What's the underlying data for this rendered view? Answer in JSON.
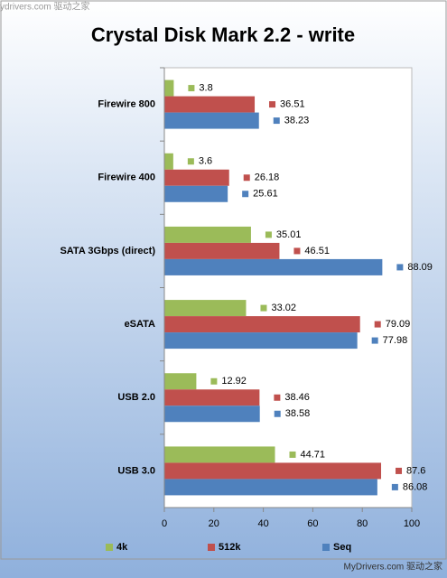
{
  "watermarks": {
    "top": "ydrivers.com 驱动之家",
    "bottom": "MyDrivers.com 驱动之家"
  },
  "chart_data": {
    "type": "bar",
    "orientation": "horizontal",
    "title": "Crystal Disk Mark 2.2 - write",
    "categories": [
      "Firewire 800",
      "Firewire 400",
      "SATA 3Gbps (direct)",
      "eSATA",
      "USB 2.0",
      "USB 3.0"
    ],
    "series": [
      {
        "name": "4k",
        "color": "#9bbb59",
        "values": [
          3.8,
          3.6,
          35.01,
          33.02,
          12.92,
          44.71
        ]
      },
      {
        "name": "512k",
        "color": "#c0504d",
        "values": [
          36.51,
          26.18,
          46.51,
          79.09,
          38.46,
          87.6
        ]
      },
      {
        "name": "Seq",
        "color": "#4f81bd",
        "values": [
          38.23,
          25.61,
          88.09,
          77.98,
          38.58,
          86.08
        ]
      }
    ],
    "xlim": [
      0,
      100
    ],
    "xticks": [
      0,
      20,
      40,
      60,
      80,
      100
    ],
    "legend": "bottom"
  }
}
